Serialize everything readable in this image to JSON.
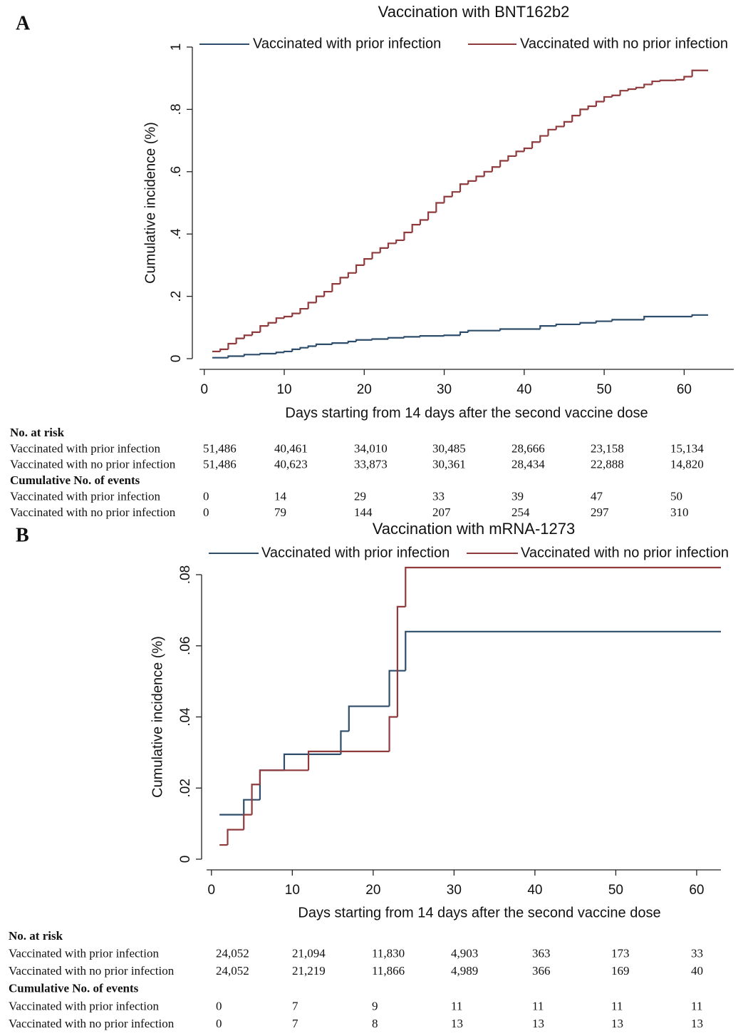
{
  "chart_data": [
    {
      "type": "line",
      "step": "post",
      "panel": "A",
      "title": "Vaccination with BNT162b2",
      "xlabel": "Days starting from 14 days after the second vaccine dose",
      "ylabel": "Cumulative incidence (%)",
      "xlim": [
        -0.6,
        66.2
      ],
      "ylim": [
        0,
        1
      ],
      "xticks": [
        0,
        10,
        20,
        30,
        40,
        50,
        60
      ],
      "yticks": [
        0,
        {
          "value": 0.2,
          "label": ".2"
        },
        {
          "value": 0.4,
          "label": ".4"
        },
        {
          "value": 0.6,
          "label": ".6"
        },
        {
          "value": 0.8,
          "label": ".8"
        },
        1
      ],
      "legend": "top",
      "grid": false,
      "series": [
        {
          "name": "Vaccinated with prior infection",
          "color": "#2e4d6b",
          "x": [
            1,
            3,
            5,
            7,
            9,
            10,
            11,
            12,
            13,
            14,
            16,
            18,
            19,
            21,
            23,
            25,
            27,
            30,
            32,
            33,
            37,
            42,
            44,
            47,
            49,
            51,
            55,
            61,
            63
          ],
          "values": [
            0.003,
            0.008,
            0.013,
            0.016,
            0.02,
            0.023,
            0.03,
            0.035,
            0.04,
            0.046,
            0.05,
            0.055,
            0.06,
            0.063,
            0.067,
            0.07,
            0.073,
            0.075,
            0.085,
            0.09,
            0.095,
            0.105,
            0.11,
            0.115,
            0.12,
            0.125,
            0.135,
            0.14,
            0.14
          ]
        },
        {
          "name": "Vaccinated with no prior infection",
          "color": "#8f3b3e",
          "x": [
            1,
            2,
            3,
            4,
            5,
            6,
            7,
            8,
            9,
            10,
            11,
            12,
            13,
            14,
            15,
            16,
            17,
            18,
            19,
            20,
            21,
            22,
            23,
            24,
            25,
            26,
            27,
            28,
            29,
            30,
            31,
            32,
            33,
            34,
            35,
            36,
            37,
            38,
            39,
            40,
            41,
            42,
            43,
            44,
            45,
            46,
            47,
            48,
            49,
            50,
            51,
            52,
            53,
            54,
            55,
            56,
            57,
            59,
            60,
            61,
            63
          ],
          "values": [
            0.023,
            0.03,
            0.048,
            0.065,
            0.075,
            0.085,
            0.105,
            0.115,
            0.13,
            0.135,
            0.145,
            0.16,
            0.18,
            0.2,
            0.215,
            0.24,
            0.26,
            0.275,
            0.3,
            0.32,
            0.34,
            0.355,
            0.37,
            0.38,
            0.405,
            0.43,
            0.445,
            0.47,
            0.5,
            0.52,
            0.535,
            0.56,
            0.57,
            0.585,
            0.6,
            0.615,
            0.635,
            0.65,
            0.665,
            0.675,
            0.695,
            0.715,
            0.735,
            0.745,
            0.76,
            0.78,
            0.8,
            0.81,
            0.825,
            0.84,
            0.845,
            0.86,
            0.865,
            0.87,
            0.88,
            0.89,
            0.893,
            0.895,
            0.905,
            0.925,
            0.925
          ]
        }
      ],
      "risk_table": {
        "sections": [
          {
            "title": "No. at risk",
            "rows": [
              {
                "label": "Vaccinated with prior infection",
                "values": [
                  "51,486",
                  "40,461",
                  "34,010",
                  "30,485",
                  "28,666",
                  "23,158",
                  "15,134"
                ]
              },
              {
                "label": "Vaccinated with no prior infection",
                "values": [
                  "51,486",
                  "40,623",
                  "33,873",
                  "30,361",
                  "28,434",
                  "22,888",
                  "14,820"
                ]
              }
            ]
          },
          {
            "title": "Cumulative No. of events",
            "rows": [
              {
                "label": "Vaccinated with prior infection",
                "values": [
                  "0",
                  "14",
                  "29",
                  "33",
                  "39",
                  "47",
                  "50"
                ]
              },
              {
                "label": "Vaccinated with no prior infection",
                "values": [
                  "0",
                  "79",
                  "144",
                  "207",
                  "254",
                  "297",
                  "310"
                ]
              }
            ]
          }
        ]
      }
    },
    {
      "type": "line",
      "step": "post",
      "panel": "B",
      "title": "Vaccination with mRNA-1273",
      "xlabel": "Days starting from 14 days after the second vaccine dose",
      "ylabel": "Cumulative incidence (%)",
      "xlim": [
        -0.6,
        63
      ],
      "ylim": [
        0,
        0.08
      ],
      "xticks": [
        0,
        10,
        20,
        30,
        40,
        50,
        60
      ],
      "yticks": [
        0,
        {
          "value": 0.02,
          "label": ".02"
        },
        {
          "value": 0.04,
          "label": ".04"
        },
        {
          "value": 0.06,
          "label": ".06"
        },
        {
          "value": 0.08,
          "label": ".08"
        }
      ],
      "legend": "top",
      "grid": false,
      "series": [
        {
          "name": "Vaccinated with prior infection",
          "color": "#2e4d6b",
          "x": [
            1,
            4,
            6,
            9,
            16,
            17,
            22,
            24,
            63
          ],
          "values": [
            0.0125,
            0.0167,
            0.025,
            0.0295,
            0.036,
            0.043,
            0.053,
            0.064,
            0.064
          ]
        },
        {
          "name": "Vaccinated with no prior infection",
          "color": "#8f3b3e",
          "x": [
            1,
            2,
            4,
            5,
            6,
            12,
            22,
            23,
            24,
            63
          ],
          "values": [
            0.004,
            0.0083,
            0.0125,
            0.021,
            0.025,
            0.0303,
            0.04,
            0.071,
            0.082,
            0.082
          ]
        }
      ],
      "risk_table": {
        "sections": [
          {
            "title": "No. at risk",
            "rows": [
              {
                "label": "Vaccinated with prior infection",
                "values": [
                  "24,052",
                  "21,094",
                  "11,830",
                  "4,903",
                  "363",
                  "173",
                  "33"
                ]
              },
              {
                "label": "Vaccinated with no prior infection",
                "values": [
                  "24,052",
                  "21,219",
                  "11,866",
                  "4,989",
                  "366",
                  "169",
                  "40"
                ]
              }
            ]
          },
          {
            "title": "Cumulative No. of events",
            "rows": [
              {
                "label": "Vaccinated with prior infection",
                "values": [
                  "0",
                  "7",
                  "9",
                  "11",
                  "11",
                  "11",
                  "11"
                ]
              },
              {
                "label": "Vaccinated with no prior infection",
                "values": [
                  "0",
                  "7",
                  "8",
                  "13",
                  "13",
                  "13",
                  "13"
                ]
              }
            ]
          }
        ]
      }
    }
  ]
}
